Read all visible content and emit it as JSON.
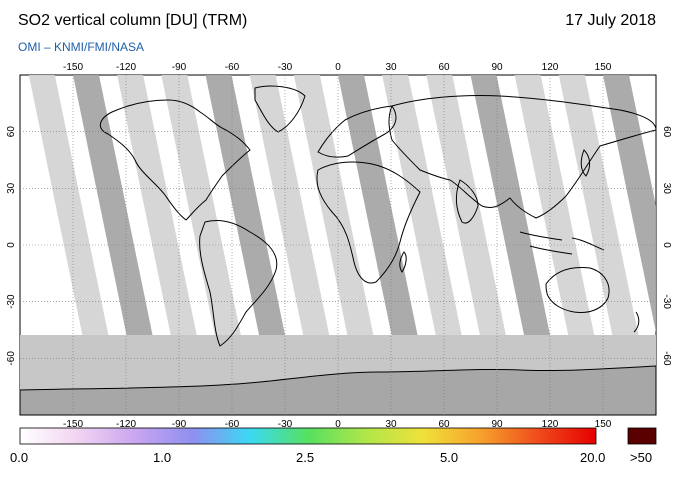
{
  "header": {
    "title": "SO2 vertical column [DU] (TRM)",
    "date": "17 July 2018",
    "credit": "OMI  –  KNMI/FMI/NASA"
  },
  "map": {
    "lon_ticks": [
      "-150",
      "-120",
      "-90",
      "-60",
      "-30",
      "0",
      "30",
      "60",
      "90",
      "120",
      "150"
    ],
    "lat_ticks": [
      "60",
      "30",
      "0",
      "-30",
      "-60"
    ],
    "lat_ticks_right": [
      "60",
      "30",
      "0",
      "-30",
      "-60"
    ],
    "colors": {
      "land_outline": "#000000",
      "grid": "#777777",
      "swath_light": "#d4d4d4",
      "swath_dark": "#a7a7a7",
      "no_data": "#c7c7c7"
    }
  },
  "colorbar": {
    "labels": [
      "0.0",
      "1.0",
      "2.5",
      "5.0",
      "20.0"
    ],
    "overflow_label": ">50",
    "gradient_colors": [
      "#ffffff",
      "#f2d4f2",
      "#c9a6f0",
      "#8f8ff0",
      "#3bd9f2",
      "#56e060",
      "#b0e64a",
      "#f0e13a",
      "#f6a12c",
      "#f04b1c",
      "#e60000"
    ],
    "overflow_color": "#5a0000"
  }
}
